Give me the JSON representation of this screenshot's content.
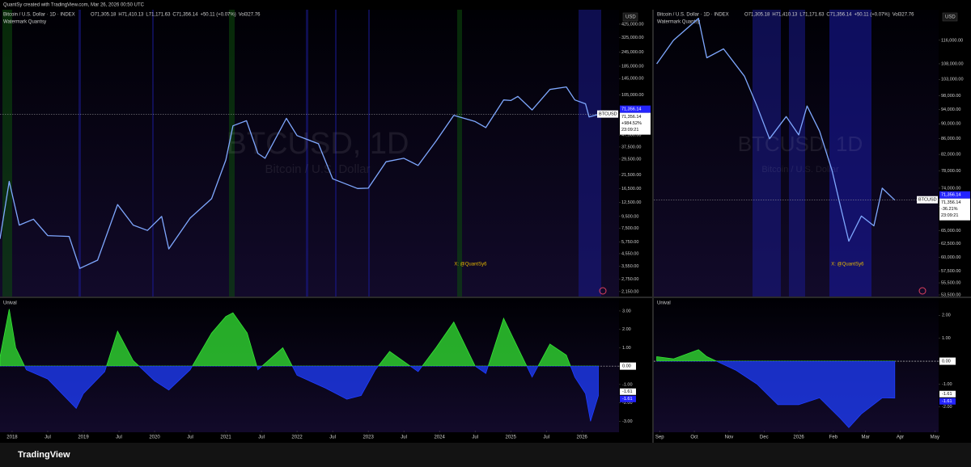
{
  "header": "QuantSy created with TradingView.com, Mar 26, 2026 00:50 UTC",
  "footer": "TradingView",
  "chart_data": [
    {
      "type": "line",
      "legend": "Bitcoin / U.S. Dollar · 1D · INDEX",
      "ohlc": [
        "O71,305.18",
        "H71,410.13",
        "L71,171.63",
        "C71,356.14",
        "+50.11 (+0.07%)",
        "Vol327.76"
      ],
      "indicator": "Watermark Quantsy",
      "watermark_symbol": "BTCUSD, 1D",
      "watermark_name": "Bitcoin / U.S. Dollar",
      "annotation": "X: @QuantSy6",
      "currency": "USD",
      "symbol": "BTCUSD",
      "last_value": 71356.14,
      "last_value_label": "71,356.14",
      "change": "+984.52%",
      "countdown": "23:09:21",
      "log_scale": true,
      "color": "#7fa8ff",
      "x": [
        2017.83,
        2017.96,
        2018.1,
        2018.3,
        2018.5,
        2018.8,
        2018.95,
        2019.2,
        2019.48,
        2019.7,
        2019.9,
        2020.1,
        2020.2,
        2020.5,
        2020.8,
        2021.0,
        2021.1,
        2021.29,
        2021.45,
        2021.55,
        2021.85,
        2022.0,
        2022.3,
        2022.5,
        2022.85,
        2023.0,
        2023.25,
        2023.5,
        2023.7,
        2023.95,
        2024.2,
        2024.5,
        2024.65,
        2024.9,
        2025.0,
        2025.1,
        2025.3,
        2025.55,
        2025.78,
        2025.9,
        2026.05,
        2026.1,
        2026.23
      ],
      "values": [
        6100,
        19000,
        8000,
        9000,
        6500,
        6400,
        3400,
        4000,
        12000,
        8000,
        7200,
        9500,
        5000,
        9200,
        13500,
        29000,
        57000,
        63000,
        33000,
        30000,
        66000,
        47000,
        40000,
        20000,
        16500,
        16600,
        28000,
        30000,
        26000,
        42000,
        70000,
        62000,
        55000,
        95000,
        94000,
        102000,
        78000,
        117000,
        123000,
        95000,
        88000,
        68000,
        71356.14
      ],
      "xlim": [
        2017.83,
        2026.52
      ],
      "ylim": [
        1950,
        566000
      ],
      "xticks": [
        2018,
        {
          "value": 2018.5,
          "label": "Jul"
        },
        2019,
        {
          "value": 2019.5,
          "label": "Jul"
        },
        2020,
        {
          "value": 2020.5,
          "label": "Jul"
        },
        2021,
        {
          "value": 2021.5,
          "label": "Jul"
        },
        2022,
        {
          "value": 2022.5,
          "label": "Jul"
        },
        2023,
        {
          "value": 2023.5,
          "label": "Jul"
        },
        2024,
        {
          "value": 2024.5,
          "label": "Jul"
        },
        2025,
        {
          "value": 2025.5,
          "label": "Jul"
        },
        2026
      ],
      "yticks": [
        {
          "value": 425000,
          "label": "425,000.00"
        },
        {
          "value": 325000,
          "label": "325,000.00"
        },
        {
          "value": 245000,
          "label": "245,000.00"
        },
        {
          "value": 185000,
          "label": "185,000.00"
        },
        {
          "value": 145000,
          "label": "145,000.00"
        },
        {
          "value": 105000,
          "label": "105,000.00"
        },
        {
          "value": 47500,
          "label": "47,500.00"
        },
        {
          "value": 37500,
          "label": "37,500.00"
        },
        {
          "value": 29500,
          "label": "29,500.00"
        },
        {
          "value": 21500,
          "label": "21,500.00"
        },
        {
          "value": 16500,
          "label": "16,500.00"
        },
        {
          "value": 12500,
          "label": "12,500.00"
        },
        {
          "value": 9500,
          "label": "9,500.00"
        },
        {
          "value": 7500,
          "label": "7,500.00"
        },
        {
          "value": 5750,
          "label": "5,750.00"
        },
        {
          "value": 4550,
          "label": "4,550.00"
        },
        {
          "value": 3550,
          "label": "3,550.00"
        },
        {
          "value": 2750,
          "label": "2,750.00"
        },
        {
          "value": 2150,
          "label": "2,150.00"
        }
      ]
    },
    {
      "type": "line",
      "legend": "Bitcoin / U.S. Dollar · 1D · INDEX",
      "ohlc": [
        "O71,305.18",
        "H71,410.13",
        "L71,171.63",
        "C71,356.14",
        "+50.11 (+0.07%)",
        "Vol327.76"
      ],
      "indicator": "Watermark Quantsy",
      "watermark_symbol": "BTCUSD, 1D",
      "watermark_name": "Bitcoin / U.S. Dollar",
      "annotation": "X: @QuantSy6",
      "currency": "USD",
      "symbol": "BTCUSD",
      "last_value": 71356.14,
      "last_value_label": "71,356.14",
      "change": "-36.21%",
      "countdown": "23:09:21",
      "log_scale": true,
      "color": "#7fa8ff",
      "x": [
        2025.66,
        2025.7,
        2025.76,
        2025.78,
        2025.82,
        2025.87,
        2025.9,
        2025.93,
        2025.97,
        2026.0,
        2026.02,
        2026.05,
        2026.08,
        2026.1,
        2026.12,
        2026.15,
        2026.18,
        2026.2,
        2026.23
      ],
      "values": [
        108000,
        116000,
        124000,
        110000,
        113000,
        104000,
        95000,
        86000,
        92000,
        87000,
        95000,
        88000,
        78000,
        70000,
        63000,
        68000,
        66000,
        74000,
        71356.14
      ],
      "xlim": [
        2025.653,
        2026.335
      ],
      "ylim": [
        53240,
        127300
      ],
      "xticks": [
        {
          "value": 2025.667,
          "label": "Sep"
        },
        {
          "value": 2025.75,
          "label": "Oct"
        },
        {
          "value": 2025.833,
          "label": "Nov"
        },
        {
          "value": 2025.917,
          "label": "Dec"
        },
        2026,
        {
          "value": 2026.083,
          "label": "Feb"
        },
        {
          "value": 2026.16,
          "label": "Mar"
        },
        {
          "value": 2026.243,
          "label": "Apr"
        },
        {
          "value": 2026.326,
          "label": "May"
        }
      ],
      "yticks": [
        {
          "value": 116000,
          "label": "116,000.00"
        },
        {
          "value": 108000,
          "label": "108,000.00"
        },
        {
          "value": 103000,
          "label": "103,000.00"
        },
        {
          "value": 98000,
          "label": "98,000.00"
        },
        {
          "value": 94000,
          "label": "94,000.00"
        },
        {
          "value": 90000,
          "label": "90,000.00"
        },
        {
          "value": 86000,
          "label": "86,000.00"
        },
        {
          "value": 82000,
          "label": "82,000.00"
        },
        {
          "value": 78000,
          "label": "78,000.00"
        },
        {
          "value": 74000,
          "label": "74,000.00"
        },
        {
          "value": 70000,
          "label": "70,000.00"
        },
        {
          "value": 65000,
          "label": "65,000.00"
        },
        {
          "value": 62500,
          "label": "62,500.00"
        },
        {
          "value": 60000,
          "label": "60,000.00"
        },
        {
          "value": 57500,
          "label": "57,500.00"
        },
        {
          "value": 55500,
          "label": "55,500.00"
        },
        {
          "value": 53500,
          "label": "53,500.00"
        }
      ]
    },
    {
      "type": "area",
      "title": "Unival",
      "color": "#33e633",
      "negative_color": "#1f3dff",
      "last_value": -1.61,
      "x": [
        2017.83,
        2017.96,
        2018.05,
        2018.2,
        2018.5,
        2018.9,
        2019.0,
        2019.3,
        2019.48,
        2019.7,
        2020.0,
        2020.2,
        2020.5,
        2020.8,
        2021.0,
        2021.1,
        2021.3,
        2021.45,
        2021.8,
        2022.0,
        2022.4,
        2022.7,
        2022.9,
        2023.1,
        2023.3,
        2023.7,
        2023.95,
        2024.2,
        2024.5,
        2024.65,
        2024.9,
        2025.1,
        2025.3,
        2025.55,
        2025.78,
        2025.9,
        2026.05,
        2026.12,
        2026.23
      ],
      "values": [
        0.5,
        3.1,
        1.0,
        -0.2,
        -0.7,
        -2.3,
        -1.5,
        -0.3,
        1.9,
        0.3,
        -0.8,
        -1.3,
        -0.2,
        1.8,
        2.7,
        2.9,
        1.8,
        -0.2,
        1.0,
        -0.5,
        -1.2,
        -1.8,
        -1.6,
        -0.2,
        0.8,
        -0.3,
        1.0,
        2.4,
        0.0,
        -0.4,
        2.6,
        1.0,
        -0.6,
        1.2,
        0.6,
        -0.6,
        -1.5,
        -3.0,
        -1.61
      ],
      "xlim": [
        2017.83,
        2026.52
      ],
      "ylim": [
        -3.6,
        3.7
      ],
      "yticks": [
        {
          "value": 3,
          "label": "3.00"
        },
        {
          "value": 2,
          "label": "2.00"
        },
        {
          "value": 1,
          "label": "1.00"
        },
        {
          "value": 0,
          "label": "0.00"
        },
        {
          "value": -1,
          "label": "-1.00"
        },
        {
          "value": -2,
          "label": "-2.00"
        },
        {
          "value": -3,
          "label": "-3.00"
        }
      ]
    },
    {
      "type": "area",
      "title": "Unival",
      "color": "#33e633",
      "negative_color": "#1f3dff",
      "last_value": -1.61,
      "x": [
        2025.66,
        2025.7,
        2025.76,
        2025.78,
        2025.85,
        2025.9,
        2025.95,
        2026.0,
        2026.05,
        2026.1,
        2026.12,
        2026.15,
        2026.2,
        2026.23
      ],
      "values": [
        0.2,
        0.1,
        0.5,
        0.2,
        -0.4,
        -1.0,
        -1.9,
        -1.9,
        -1.6,
        -2.5,
        -2.9,
        -2.3,
        -1.6,
        -1.61
      ],
      "xlim": [
        2025.653,
        2026.335
      ],
      "ylim": [
        -3.1,
        2.75
      ],
      "yticks": [
        {
          "value": 2,
          "label": "2.00"
        },
        {
          "value": 1,
          "label": "1.00"
        },
        {
          "value": 0,
          "label": "0.00"
        },
        {
          "value": -1,
          "label": "-1.00"
        },
        {
          "value": -2,
          "label": "-2.00"
        }
      ]
    }
  ]
}
